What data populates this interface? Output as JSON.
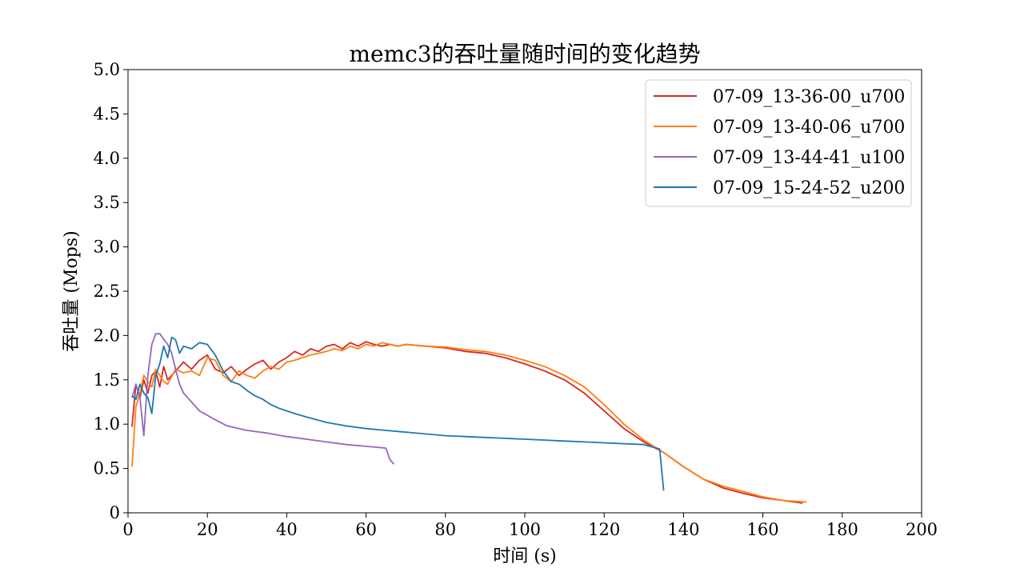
{
  "chart_data": {
    "type": "line",
    "title": "memc3的吞吐量随时间的变化趋势",
    "xlabel": "时间 (s)",
    "ylabel": "吞吐量 (Mops)",
    "xlim": [
      0,
      200
    ],
    "ylim": [
      0,
      5
    ],
    "xticks": [
      0,
      20,
      40,
      60,
      80,
      100,
      120,
      140,
      160,
      180,
      200
    ],
    "yticks": [
      0,
      0.5,
      1.0,
      1.5,
      2.0,
      2.5,
      3.0,
      3.5,
      4.0,
      4.5,
      5.0
    ],
    "ytick_labels": [
      "0",
      "0.5",
      "1.0",
      "1.5",
      "2.0",
      "2.5",
      "3.0",
      "3.5",
      "4.0",
      "4.5",
      "5.0"
    ],
    "grid": false,
    "legend_position": "top-right",
    "series": [
      {
        "name": "07-09_13-36-00_u700",
        "color": "#d62728",
        "x": [
          1,
          2,
          3,
          4,
          5,
          6,
          7,
          8,
          9,
          10,
          12,
          14,
          16,
          18,
          20,
          22,
          24,
          26,
          28,
          30,
          32,
          34,
          36,
          38,
          40,
          42,
          44,
          46,
          48,
          50,
          52,
          54,
          56,
          58,
          60,
          62,
          64,
          66,
          68,
          70,
          75,
          80,
          85,
          90,
          95,
          100,
          105,
          110,
          115,
          120,
          125,
          130,
          135,
          140,
          145,
          150,
          155,
          160,
          165,
          170
        ],
        "y": [
          0.97,
          1.45,
          1.3,
          1.5,
          1.35,
          1.55,
          1.6,
          1.42,
          1.65,
          1.5,
          1.6,
          1.7,
          1.62,
          1.72,
          1.78,
          1.62,
          1.58,
          1.65,
          1.55,
          1.62,
          1.68,
          1.72,
          1.62,
          1.7,
          1.75,
          1.82,
          1.78,
          1.85,
          1.82,
          1.88,
          1.9,
          1.85,
          1.92,
          1.88,
          1.93,
          1.9,
          1.88,
          1.9,
          1.88,
          1.9,
          1.88,
          1.86,
          1.82,
          1.8,
          1.75,
          1.68,
          1.6,
          1.5,
          1.35,
          1.15,
          0.95,
          0.8,
          0.68,
          0.52,
          0.38,
          0.28,
          0.22,
          0.17,
          0.14,
          0.11
        ]
      },
      {
        "name": "07-09_13-40-06_u700",
        "color": "#ff7f0e",
        "x": [
          1,
          2,
          3,
          4,
          5,
          6,
          7,
          8,
          9,
          10,
          12,
          14,
          16,
          18,
          20,
          22,
          24,
          26,
          28,
          30,
          32,
          34,
          36,
          38,
          40,
          42,
          44,
          46,
          48,
          50,
          52,
          54,
          56,
          58,
          60,
          62,
          64,
          66,
          68,
          70,
          75,
          80,
          85,
          90,
          95,
          100,
          105,
          110,
          115,
          120,
          125,
          130,
          135,
          140,
          145,
          150,
          155,
          160,
          165,
          171
        ],
        "y": [
          0.52,
          1.2,
          1.35,
          1.55,
          1.48,
          1.42,
          1.62,
          1.55,
          1.48,
          1.45,
          1.62,
          1.58,
          1.6,
          1.55,
          1.75,
          1.72,
          1.55,
          1.48,
          1.6,
          1.55,
          1.52,
          1.6,
          1.65,
          1.62,
          1.7,
          1.72,
          1.75,
          1.78,
          1.8,
          1.82,
          1.85,
          1.83,
          1.88,
          1.85,
          1.9,
          1.88,
          1.92,
          1.9,
          1.88,
          1.9,
          1.88,
          1.87,
          1.84,
          1.82,
          1.78,
          1.72,
          1.65,
          1.55,
          1.42,
          1.22,
          1.0,
          0.82,
          0.68,
          0.52,
          0.38,
          0.3,
          0.24,
          0.18,
          0.14,
          0.12
        ]
      },
      {
        "name": "07-09_13-44-41_u100",
        "color": "#9467bd",
        "x": [
          1,
          2,
          3,
          4,
          5,
          6,
          7,
          8,
          9,
          10,
          11,
          12,
          13,
          14,
          16,
          18,
          20,
          22,
          25,
          28,
          30,
          35,
          40,
          45,
          50,
          55,
          60,
          65,
          66,
          67
        ],
        "y": [
          1.3,
          1.45,
          1.3,
          0.87,
          1.55,
          1.9,
          2.02,
          2.02,
          1.96,
          1.9,
          1.8,
          1.62,
          1.45,
          1.35,
          1.25,
          1.15,
          1.1,
          1.05,
          0.98,
          0.95,
          0.93,
          0.9,
          0.86,
          0.83,
          0.8,
          0.77,
          0.75,
          0.73,
          0.6,
          0.55
        ]
      },
      {
        "name": "07-09_15-24-52_u200",
        "color": "#1f77b4",
        "x": [
          1,
          2,
          3,
          4,
          5,
          6,
          7,
          8,
          9,
          10,
          11,
          12,
          13,
          14,
          16,
          18,
          20,
          22,
          24,
          26,
          28,
          30,
          32,
          34,
          36,
          38,
          40,
          42,
          45,
          50,
          55,
          60,
          65,
          70,
          75,
          80,
          85,
          90,
          95,
          100,
          105,
          110,
          115,
          120,
          125,
          130,
          134,
          135
        ],
        "y": [
          1.32,
          1.28,
          1.45,
          1.35,
          1.3,
          1.12,
          1.55,
          1.68,
          1.88,
          1.75,
          1.98,
          1.95,
          1.8,
          1.88,
          1.85,
          1.92,
          1.9,
          1.78,
          1.6,
          1.48,
          1.45,
          1.38,
          1.32,
          1.28,
          1.22,
          1.18,
          1.15,
          1.12,
          1.08,
          1.02,
          0.98,
          0.95,
          0.93,
          0.91,
          0.89,
          0.87,
          0.86,
          0.85,
          0.84,
          0.83,
          0.82,
          0.81,
          0.8,
          0.79,
          0.78,
          0.77,
          0.72,
          0.25
        ]
      }
    ]
  }
}
